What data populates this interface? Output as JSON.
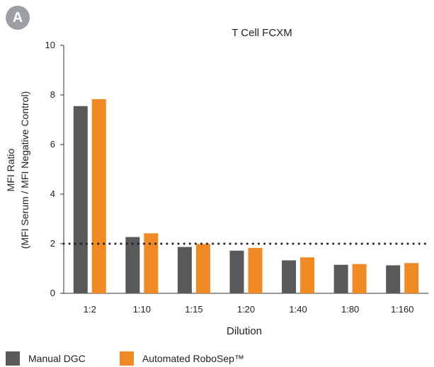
{
  "panel_label": "A",
  "chart_data": {
    "type": "bar",
    "title": "T Cell FCXM",
    "xlabel": "Dilution",
    "ylabel_line1": "MFI Ratio",
    "ylabel_line2": "(MFI Serum / MFI Negative Control)",
    "ylim": [
      0,
      10
    ],
    "yticks": [
      0,
      2,
      4,
      6,
      8,
      10
    ],
    "categories": [
      "1:2",
      "1:10",
      "1:15",
      "1:20",
      "1:40",
      "1:80",
      "1:160"
    ],
    "series": [
      {
        "name": "Manual DGC",
        "color": "#58595b",
        "values": [
          7.55,
          2.27,
          1.87,
          1.72,
          1.33,
          1.15,
          1.13
        ]
      },
      {
        "name": "Automated RoboSep™",
        "color": "#f08a24",
        "values": [
          7.83,
          2.42,
          1.99,
          1.83,
          1.45,
          1.18,
          1.22
        ]
      }
    ],
    "reference_line": {
      "y": 2,
      "style": "dotted"
    },
    "grid": false,
    "legend_position": "bottom-left"
  }
}
